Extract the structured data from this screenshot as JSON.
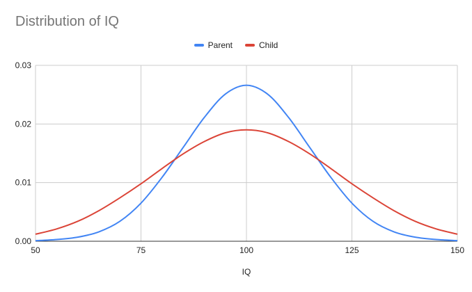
{
  "chart_data": {
    "type": "line",
    "title": "Distribution of IQ",
    "xlabel": "IQ",
    "ylabel": "",
    "xlim": [
      50,
      150
    ],
    "ylim": [
      0,
      0.03
    ],
    "x_ticks": [
      "50",
      "75",
      "100",
      "125",
      "150"
    ],
    "y_ticks": [
      "0.00",
      "0.01",
      "0.02",
      "0.03"
    ],
    "legend_position": "top",
    "grid": true,
    "series": [
      {
        "name": "Parent",
        "color": "#4285F4",
        "x": [
          50,
          55,
          60,
          65,
          70,
          75,
          80,
          85,
          90,
          95,
          100,
          105,
          110,
          115,
          120,
          125,
          130,
          135,
          140,
          145,
          150
        ],
        "y": [
          0.0001,
          0.0003,
          0.0007,
          0.0016,
          0.0034,
          0.0065,
          0.0109,
          0.016,
          0.0211,
          0.0251,
          0.0266,
          0.0251,
          0.0211,
          0.016,
          0.0109,
          0.0065,
          0.0034,
          0.0016,
          0.0007,
          0.0003,
          0.0001
        ]
      },
      {
        "name": "Child",
        "color": "#DB4437",
        "x": [
          50,
          55,
          60,
          65,
          70,
          75,
          80,
          85,
          90,
          95,
          100,
          105,
          110,
          115,
          120,
          125,
          130,
          135,
          140,
          145,
          150
        ],
        "y": [
          0.0012,
          0.0021,
          0.0034,
          0.0052,
          0.0074,
          0.0098,
          0.0124,
          0.0149,
          0.017,
          0.0185,
          0.019,
          0.0185,
          0.017,
          0.0149,
          0.0124,
          0.0098,
          0.0074,
          0.0052,
          0.0034,
          0.0021,
          0.0012
        ]
      }
    ]
  }
}
